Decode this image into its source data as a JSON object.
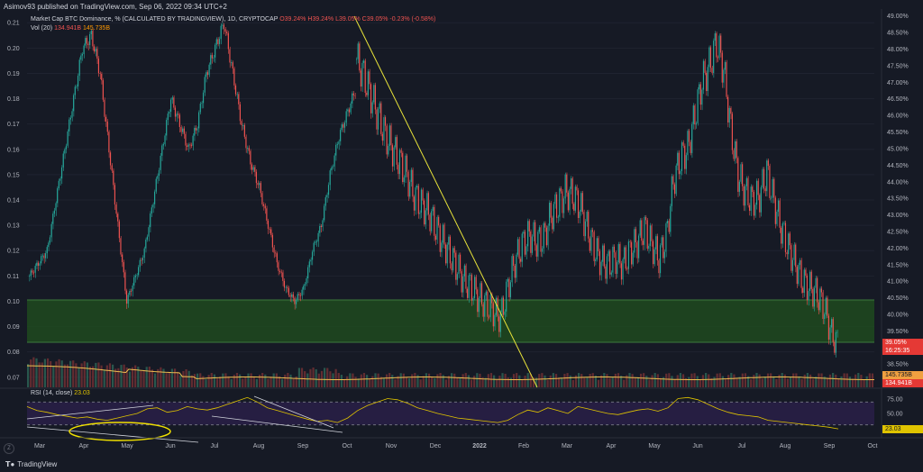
{
  "publisher_line": "Asimov93 published on TradingView.com, Sep 06, 2022 09:34 UTC+2",
  "legend": {
    "title": "Market Cap BTC Dominance, % (CALCULATED BY TRADINGVIEW), 1D, CRYPTOCAP",
    "ohlc": "O39.24%  H39.24%  L39.05%  C39.05%  -0.23% (-0.58%)",
    "vol_label": "Vol (20)",
    "vol_value_1": "134.941B",
    "vol_value_2": "145.735B",
    "rsi_label": "RSI (14, close)",
    "rsi_value": "23.03"
  },
  "price_tags": {
    "last_price": "39.05%",
    "countdown": "16:25:35",
    "vol_ma": "145.735B",
    "vol": "134.941B",
    "rsi": "23.03"
  },
  "brand": "TradingView",
  "colors": {
    "bg": "#161a25",
    "up": "#26a69a",
    "down": "#ef5350",
    "trendline": "#e8e33a",
    "zone": "#1f4a1f",
    "rsi_band": "#2a1f4a",
    "rsi_line": "#e0c400",
    "vol_ma": "#f0c050"
  },
  "chart_data": {
    "type": "candlestick",
    "left_axis": {
      "label": "",
      "ticks": [
        "0.21",
        "0.20",
        "0.19",
        "0.18",
        "0.17",
        "0.16",
        "0.15",
        "0.14",
        "0.13",
        "0.12",
        "0.11",
        "0.10",
        "0.09",
        "0.08",
        "0.07"
      ],
      "range": [
        0.066,
        0.214
      ]
    },
    "right_axis": {
      "label": "",
      "ticks": [
        "49.00%",
        "48.50%",
        "48.00%",
        "47.50%",
        "47.00%",
        "46.50%",
        "46.00%",
        "45.50%",
        "45.00%",
        "44.50%",
        "44.00%",
        "43.50%",
        "43.00%",
        "42.50%",
        "42.00%",
        "41.50%",
        "41.00%",
        "40.50%",
        "40.00%",
        "39.50%",
        "38.50%"
      ],
      "range": [
        37.8,
        49.1
      ]
    },
    "rsi_axis": {
      "ticks": [
        "75.00",
        "50.00"
      ],
      "range": [
        20,
        80
      ],
      "upper_band": 70,
      "lower_band": 30
    },
    "x_ticks": [
      "Mar",
      "Apr",
      "May",
      "Jun",
      "Jul",
      "Aug",
      "Sep",
      "Oct",
      "Nov",
      "Dec",
      "2022",
      "Feb",
      "Mar",
      "Apr",
      "May",
      "Jun",
      "Jul",
      "Aug",
      "Sep",
      "Oct"
    ],
    "price_series_left_axis": [
      0.11,
      0.115,
      0.12,
      0.14,
      0.16,
      0.18,
      0.2,
      0.205,
      0.19,
      0.16,
      0.13,
      0.1,
      0.11,
      0.12,
      0.14,
      0.16,
      0.18,
      0.17,
      0.16,
      0.17,
      0.19,
      0.2,
      0.21,
      0.19,
      0.17,
      0.155,
      0.145,
      0.13,
      0.115,
      0.105,
      0.1,
      0.105,
      0.12,
      0.13,
      0.15,
      0.165,
      0.175,
      0.185
    ],
    "price_series_right_axis": [
      47.7,
      47.2,
      46.6,
      46.0,
      45.4,
      45.0,
      44.6,
      44.2,
      43.6,
      43.3,
      43.1,
      42.6,
      42.2,
      41.8,
      41.4,
      41.0,
      40.8,
      40.5,
      40.3,
      40.1,
      39.9,
      40.8,
      41.6,
      42.1,
      42.4,
      42.2,
      42.3,
      43.0,
      43.3,
      43.7,
      43.6,
      43.3,
      42.6,
      42.0,
      41.6,
      41.5,
      41.7,
      41.5,
      41.9,
      42.2,
      42.6,
      42.1,
      41.7,
      42.3,
      44.0,
      44.7,
      45.0,
      46.0,
      47.0,
      47.5,
      48.2,
      47.4,
      45.6,
      44.2,
      43.7,
      43.4,
      43.6,
      44.3,
      43.4,
      42.6,
      42.0,
      41.5,
      41.0,
      40.8,
      40.6,
      40.2,
      39.4,
      39.05
    ],
    "rsi_values": [
      62,
      55,
      52,
      48,
      45,
      42,
      44,
      40,
      38,
      42,
      46,
      50,
      58,
      60,
      52,
      55,
      62,
      58,
      56,
      60,
      66,
      72,
      78,
      70,
      60,
      55,
      50,
      45,
      40,
      36,
      38,
      34,
      42,
      55,
      64,
      70,
      76,
      74,
      68,
      60,
      55,
      50,
      46,
      42,
      40,
      38,
      36,
      34,
      38,
      48,
      56,
      52,
      60,
      55,
      50,
      62,
      58,
      54,
      50,
      48,
      52,
      56,
      58,
      54,
      60,
      76,
      78,
      74,
      66,
      58,
      52,
      48,
      46,
      44,
      38,
      36,
      34,
      32,
      30,
      28,
      26,
      23
    ]
  }
}
